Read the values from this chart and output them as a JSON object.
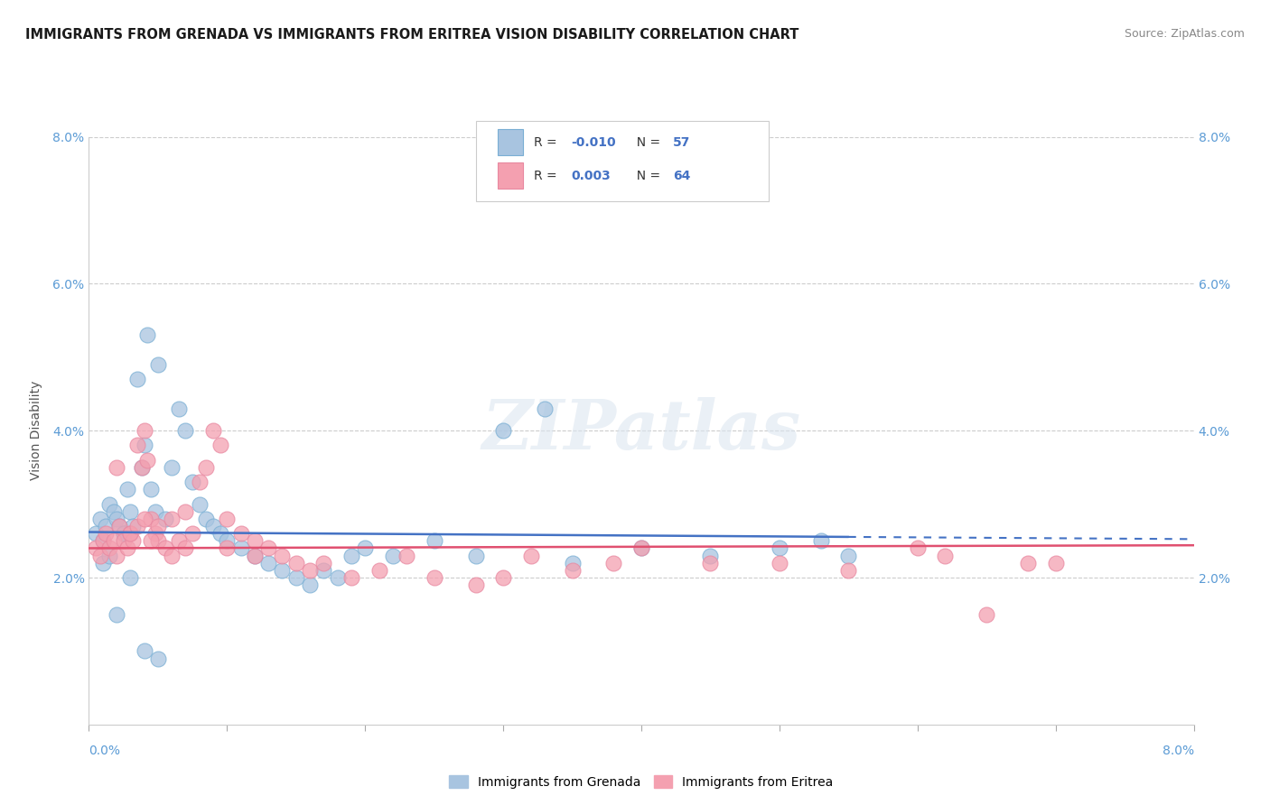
{
  "title": "IMMIGRANTS FROM GRENADA VS IMMIGRANTS FROM ERITREA VISION DISABILITY CORRELATION CHART",
  "source": "Source: ZipAtlas.com",
  "ylabel": "Vision Disability",
  "xlim": [
    0.0,
    8.0
  ],
  "ylim": [
    0.0,
    8.0
  ],
  "grenada_color": "#a8c4e0",
  "eritrea_color": "#f4a0b0",
  "grenada_line_color": "#4472c4",
  "eritrea_line_color": "#e05070",
  "grenada_R": -0.01,
  "grenada_N": 57,
  "eritrea_R": 0.003,
  "eritrea_N": 64,
  "legend_label1": "Immigrants from Grenada",
  "legend_label2": "Immigrants from Eritrea",
  "watermark": "ZIPatlas",
  "grenada_x": [
    0.05,
    0.08,
    0.1,
    0.12,
    0.15,
    0.18,
    0.2,
    0.22,
    0.25,
    0.28,
    0.3,
    0.32,
    0.35,
    0.38,
    0.4,
    0.42,
    0.45,
    0.48,
    0.5,
    0.55,
    0.6,
    0.65,
    0.7,
    0.75,
    0.8,
    0.85,
    0.9,
    0.95,
    1.0,
    1.1,
    1.2,
    1.3,
    1.4,
    1.5,
    1.6,
    1.7,
    1.8,
    1.9,
    2.0,
    2.2,
    2.5,
    2.8,
    3.0,
    3.3,
    3.5,
    4.0,
    4.5,
    5.0,
    5.3,
    5.5,
    0.1,
    0.15,
    0.2,
    0.25,
    0.3,
    0.4,
    0.5
  ],
  "grenada_y": [
    2.6,
    2.8,
    2.5,
    2.7,
    3.0,
    2.9,
    2.8,
    2.7,
    2.6,
    3.2,
    2.9,
    2.7,
    4.7,
    3.5,
    3.8,
    5.3,
    3.2,
    2.9,
    4.9,
    2.8,
    3.5,
    4.3,
    4.0,
    3.3,
    3.0,
    2.8,
    2.7,
    2.6,
    2.5,
    2.4,
    2.3,
    2.2,
    2.1,
    2.0,
    1.9,
    2.1,
    2.0,
    2.3,
    2.4,
    2.3,
    2.5,
    2.3,
    4.0,
    4.3,
    2.2,
    2.4,
    2.3,
    2.4,
    2.5,
    2.3,
    2.2,
    2.3,
    1.5,
    2.6,
    2.0,
    1.0,
    0.9
  ],
  "eritrea_x": [
    0.05,
    0.08,
    0.1,
    0.12,
    0.15,
    0.18,
    0.2,
    0.22,
    0.25,
    0.28,
    0.3,
    0.32,
    0.35,
    0.38,
    0.4,
    0.42,
    0.45,
    0.48,
    0.5,
    0.55,
    0.6,
    0.65,
    0.7,
    0.75,
    0.8,
    0.85,
    0.9,
    0.95,
    1.0,
    1.1,
    1.2,
    1.3,
    1.4,
    1.5,
    1.6,
    1.7,
    1.9,
    2.1,
    2.3,
    2.5,
    2.8,
    3.0,
    3.2,
    3.5,
    3.8,
    4.0,
    4.5,
    5.0,
    5.5,
    6.0,
    6.2,
    6.5,
    6.8,
    7.0,
    0.2,
    0.3,
    0.35,
    0.4,
    0.45,
    0.5,
    0.6,
    0.7,
    1.0,
    1.2
  ],
  "eritrea_y": [
    2.4,
    2.3,
    2.5,
    2.6,
    2.4,
    2.5,
    2.3,
    2.7,
    2.5,
    2.4,
    2.6,
    2.5,
    3.8,
    3.5,
    4.0,
    3.6,
    2.8,
    2.6,
    2.5,
    2.4,
    2.3,
    2.5,
    2.4,
    2.6,
    3.3,
    3.5,
    4.0,
    3.8,
    2.8,
    2.6,
    2.5,
    2.4,
    2.3,
    2.2,
    2.1,
    2.2,
    2.0,
    2.1,
    2.3,
    2.0,
    1.9,
    2.0,
    2.3,
    2.1,
    2.2,
    2.4,
    2.2,
    2.2,
    2.1,
    2.4,
    2.3,
    1.5,
    2.2,
    2.2,
    3.5,
    2.6,
    2.7,
    2.8,
    2.5,
    2.7,
    2.8,
    2.9,
    2.4,
    2.3
  ]
}
